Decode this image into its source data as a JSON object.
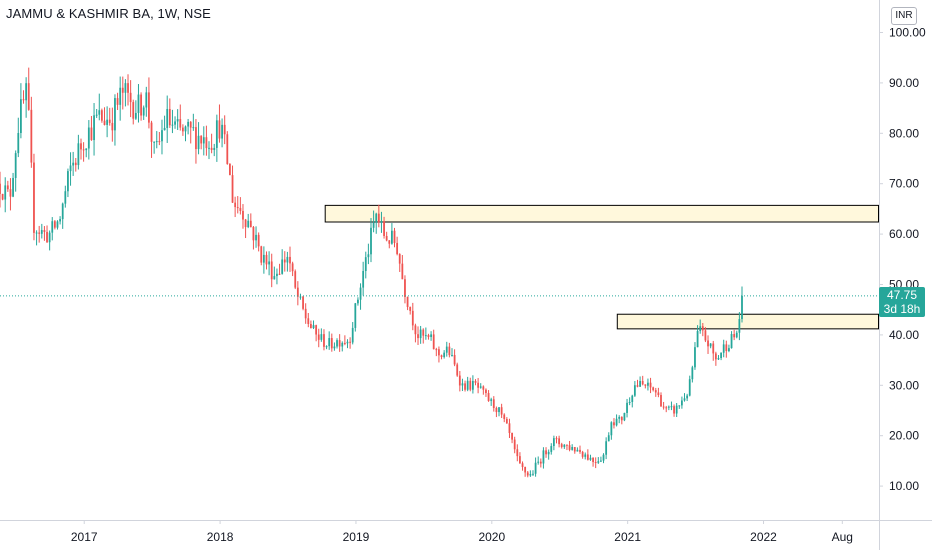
{
  "header": {
    "title": "JAMMU & KASHMIR BA, 1W, NSE"
  },
  "currency_button": {
    "label": "INR"
  },
  "last_price": {
    "price": "47.75",
    "countdown": "3d 18h"
  },
  "colors": {
    "up": "#26a69a",
    "down": "#ef5350",
    "zone_fill": "#fff8dc",
    "zone_stroke": "#000000",
    "price_line": "#26a69a"
  },
  "chart_data": {
    "type": "candlestick",
    "title": "JAMMU & KASHMIR BA, 1W, NSE",
    "ylim": [
      0,
      105
    ],
    "xlim": [
      2016.38,
      2022.85
    ],
    "y_ticks": [
      "100.00",
      "90.00",
      "80.00",
      "70.00",
      "60.00",
      "50.00",
      "40.00",
      "30.00",
      "20.00",
      "10.00"
    ],
    "x_ticks": [
      {
        "label": "2017",
        "x": 2017.0
      },
      {
        "label": "2018",
        "x": 2018.0
      },
      {
        "label": "2019",
        "x": 2019.0
      },
      {
        "label": "2020",
        "x": 2020.0
      },
      {
        "label": "2021",
        "x": 2021.0
      },
      {
        "label": "2022",
        "x": 2022.0
      },
      {
        "label": "Aug",
        "x": 2022.58
      }
    ],
    "last_price": 47.75,
    "anchors": [
      [
        2016.38,
        70
      ],
      [
        2016.45,
        67
      ],
      [
        2016.52,
        83
      ],
      [
        2016.58,
        88
      ],
      [
        2016.63,
        62
      ],
      [
        2016.7,
        60
      ],
      [
        2016.75,
        60
      ],
      [
        2016.82,
        63
      ],
      [
        2016.9,
        73
      ],
      [
        2017.0,
        79
      ],
      [
        2017.1,
        83
      ],
      [
        2017.2,
        83
      ],
      [
        2017.28,
        88
      ],
      [
        2017.4,
        85
      ],
      [
        2017.45,
        88
      ],
      [
        2017.52,
        75
      ],
      [
        2017.6,
        83
      ],
      [
        2017.7,
        80
      ],
      [
        2017.8,
        80
      ],
      [
        2017.88,
        79
      ],
      [
        2017.95,
        79
      ],
      [
        2018.0,
        82
      ],
      [
        2018.05,
        75
      ],
      [
        2018.1,
        66
      ],
      [
        2018.15,
        65
      ],
      [
        2018.22,
        62
      ],
      [
        2018.3,
        56
      ],
      [
        2018.4,
        52
      ],
      [
        2018.5,
        56
      ],
      [
        2018.55,
        49
      ],
      [
        2018.62,
        44
      ],
      [
        2018.7,
        40
      ],
      [
        2018.8,
        38
      ],
      [
        2018.88,
        39
      ],
      [
        2018.95,
        39
      ],
      [
        2019.05,
        52
      ],
      [
        2019.15,
        64
      ],
      [
        2019.2,
        60
      ],
      [
        2019.25,
        59
      ],
      [
        2019.3,
        58
      ],
      [
        2019.35,
        50
      ],
      [
        2019.45,
        40
      ],
      [
        2019.55,
        39
      ],
      [
        2019.6,
        36
      ],
      [
        2019.68,
        37
      ],
      [
        2019.78,
        30
      ],
      [
        2019.88,
        30
      ],
      [
        2019.98,
        27
      ],
      [
        2020.05,
        25
      ],
      [
        2020.12,
        21
      ],
      [
        2020.2,
        14
      ],
      [
        2020.28,
        12
      ],
      [
        2020.35,
        15
      ],
      [
        2020.45,
        19
      ],
      [
        2020.55,
        18
      ],
      [
        2020.65,
        17
      ],
      [
        2020.75,
        15
      ],
      [
        2020.82,
        16
      ],
      [
        2020.88,
        23
      ],
      [
        2020.95,
        23
      ],
      [
        2021.05,
        30
      ],
      [
        2021.12,
        30
      ],
      [
        2021.2,
        29
      ],
      [
        2021.28,
        25
      ],
      [
        2021.35,
        25
      ],
      [
        2021.45,
        29
      ],
      [
        2021.52,
        41
      ],
      [
        2021.58,
        39
      ],
      [
        2021.65,
        35
      ],
      [
        2021.72,
        38
      ],
      [
        2021.8,
        40
      ],
      [
        2021.85,
        47.75
      ]
    ],
    "zones": [
      {
        "x_start": 2018.77,
        "x_end": 2022.85,
        "y_low": 62.5,
        "y_high": 65.8
      },
      {
        "x_start": 2020.92,
        "x_end": 2022.85,
        "y_low": 41.3,
        "y_high": 44.2
      }
    ]
  }
}
